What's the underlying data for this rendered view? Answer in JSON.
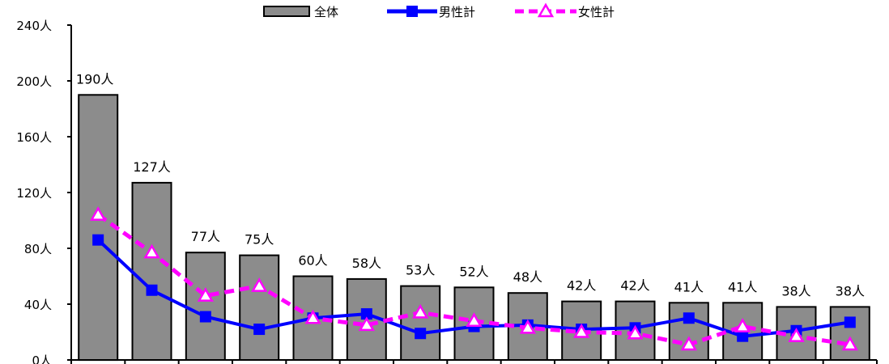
{
  "chart_data": {
    "type": "bar",
    "y_unit": "人",
    "ylim": [
      0,
      240
    ],
    "y_ticks": [
      0,
      40,
      80,
      120,
      160,
      200,
      240
    ],
    "y_tick_labels": [
      "0人",
      "40人",
      "80人",
      "120人",
      "160人",
      "200人",
      "240人"
    ],
    "grid": false,
    "legend_position": "top-center",
    "colors": {
      "bar_fill": "#8c8c8c",
      "bar_stroke": "#000000",
      "male": "#0000ff",
      "female": "#ff00ff"
    },
    "series": [
      {
        "name": "全体",
        "type": "bar",
        "values": [
          190,
          127,
          77,
          75,
          60,
          58,
          53,
          52,
          48,
          42,
          42,
          41,
          41,
          38,
          38
        ],
        "labels": [
          "190人",
          "127人",
          "77人",
          "75人",
          "60人",
          "58人",
          "53人",
          "52人",
          "48人",
          "42人",
          "42人",
          "41人",
          "41人",
          "38人",
          "38人"
        ]
      },
      {
        "name": "男性計",
        "type": "line",
        "marker": "square",
        "values": [
          86,
          50,
          31,
          22,
          30,
          33,
          19,
          24,
          25,
          22,
          23,
          30,
          17,
          21,
          27
        ]
      },
      {
        "name": "女性計",
        "type": "line",
        "marker": "triangle",
        "dash": "dashed",
        "values": [
          104,
          77,
          46,
          53,
          30,
          25,
          34,
          28,
          23,
          20,
          19,
          11,
          24,
          17,
          11
        ]
      }
    ]
  }
}
